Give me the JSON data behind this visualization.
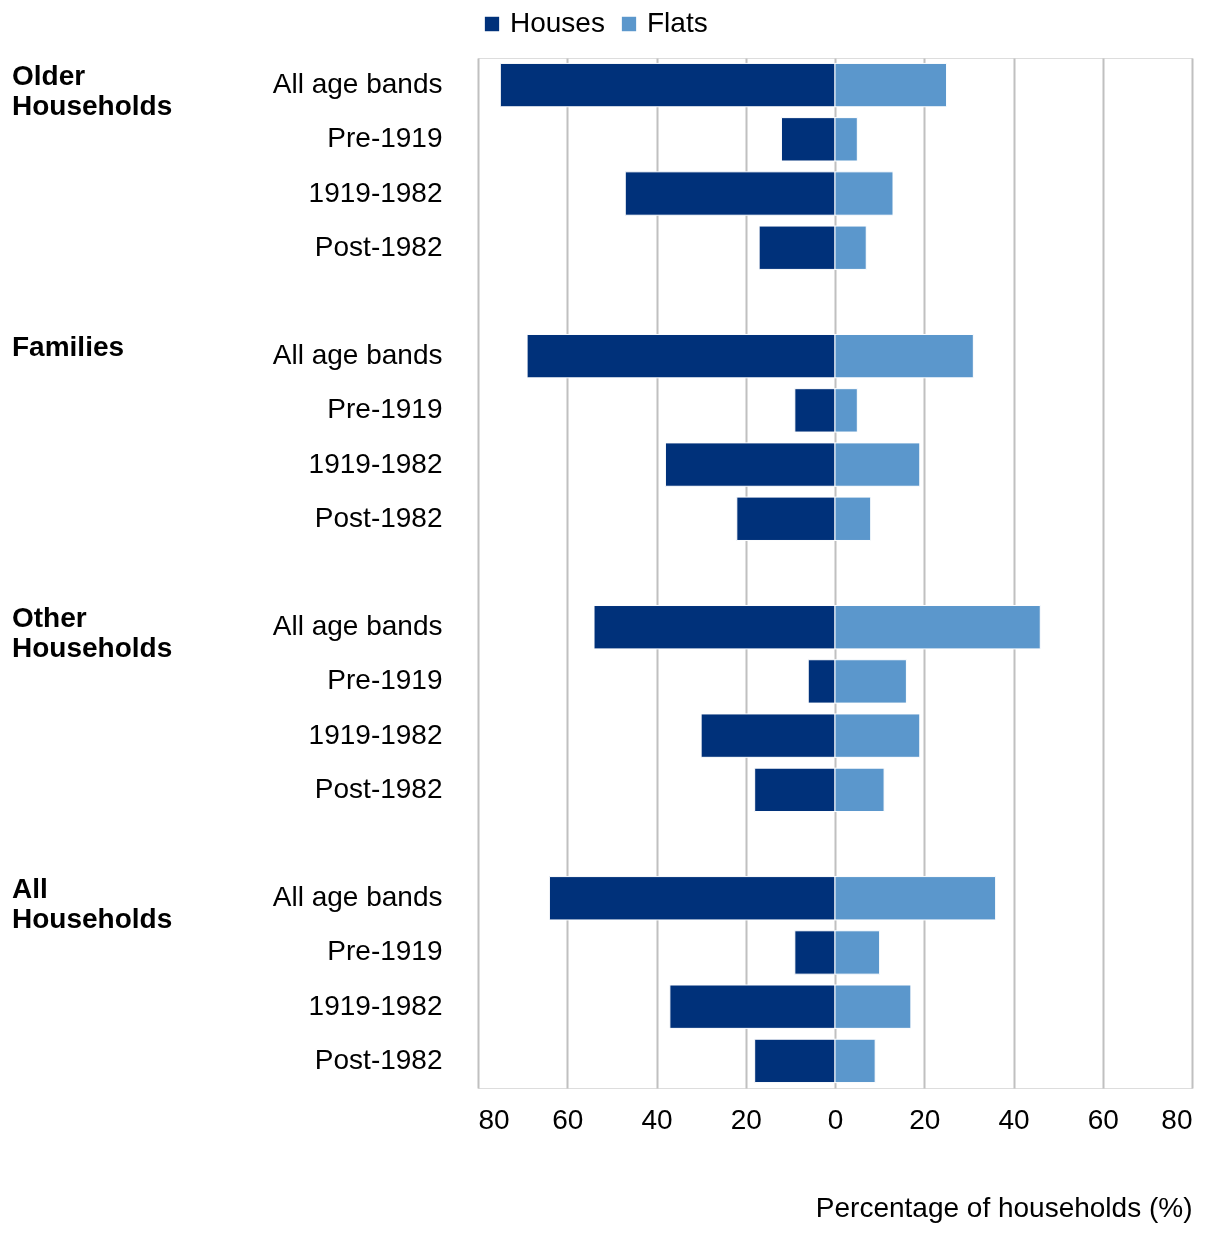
{
  "chart_data": {
    "type": "bar",
    "orientation": "horizontal",
    "stacked": true,
    "categories": [
      "All age bands",
      "Pre-1919",
      "1919-1982",
      "Post-1982",
      null,
      "All age bands",
      "Pre-1919",
      "1919-1982",
      "Post-1982",
      null,
      "All age bands",
      "Pre-1919",
      "1919-1982",
      "Post-1982",
      null,
      "All age bands",
      "Pre-1919",
      "1919-1982",
      "Post-1982"
    ],
    "series": [
      {
        "name": "Houses",
        "color": "#00317a",
        "values": [
          -75,
          -12,
          -47,
          -17,
          null,
          -69,
          -9,
          -38,
          -22,
          null,
          -54,
          -6,
          -30,
          -18,
          null,
          -64,
          -9,
          -37,
          -18
        ]
      },
      {
        "name": "Flats",
        "color": "#5b97cc",
        "values": [
          25,
          5,
          13,
          7,
          null,
          31,
          5,
          19,
          8,
          null,
          46,
          16,
          19,
          11,
          null,
          36,
          10,
          17,
          9
        ]
      }
    ],
    "annotations": [
      "Older Households",
      "Families",
      "Other Households",
      "All Households"
    ],
    "xlabel": "Percentage of households (%)",
    "xlim": [
      -80,
      80
    ],
    "xticks": [
      {
        "value": -80,
        "label": "80"
      },
      {
        "value": -60,
        "label": "60"
      },
      {
        "value": -40,
        "label": "40"
      },
      {
        "value": -20,
        "label": "20"
      },
      0,
      20,
      40,
      60,
      80
    ],
    "grid": "x",
    "legend": "top"
  }
}
